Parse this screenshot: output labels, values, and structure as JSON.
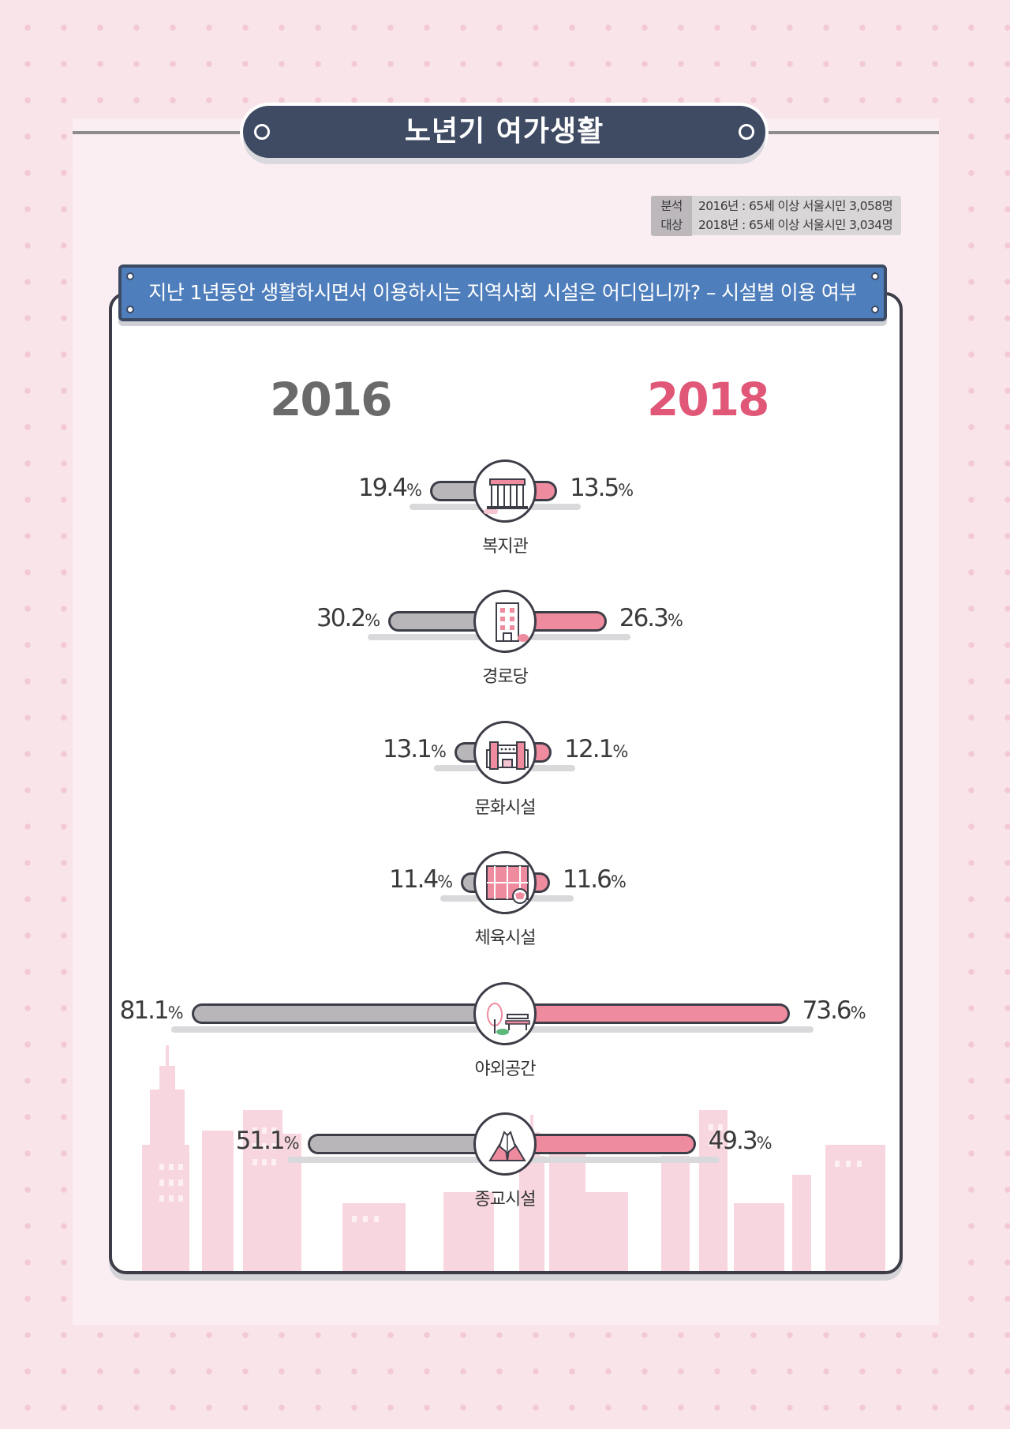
{
  "header": {
    "title": "노년기 여가생활"
  },
  "meta": {
    "label": "분석\n대상",
    "lines": [
      "2016년 : 65세 이상 서울시민 3,058명",
      "2018년 : 65세 이상 서울시민 3,034명"
    ]
  },
  "question": "지난 1년동안 생활하시면서 이용하시는 지역사회 시설은 어디입니까? – 시설별 이용 여부",
  "colors": {
    "y2016": "#b8b6b8",
    "y2018": "#ee8b9f",
    "title_bg": "#3f4a63",
    "question_bg": "#4f7ebc"
  },
  "chart_data": {
    "type": "bar",
    "orientation": "diverging-horizontal",
    "unit": "%",
    "categories": [
      "복지관",
      "경로당",
      "문화시설",
      "체육시설",
      "야외공간",
      "종교시설"
    ],
    "icons": [
      "welfare-center-icon",
      "senior-center-icon",
      "culture-facility-icon",
      "sports-facility-icon",
      "park-icon",
      "religion-icon"
    ],
    "series": [
      {
        "name": "2016",
        "side": "left",
        "color": "#b8b6b8",
        "values": [
          19.4,
          30.2,
          13.1,
          11.4,
          81.1,
          51.1
        ]
      },
      {
        "name": "2018",
        "side": "right",
        "color": "#ee8b9f",
        "values": [
          13.5,
          26.3,
          12.1,
          11.6,
          73.6,
          49.3
        ]
      }
    ],
    "value_labels": {
      "2016": [
        "19.4",
        "30.2",
        "13.1",
        "11.4",
        "81.1",
        "51.1"
      ],
      "2018": [
        "13.5",
        "26.3",
        "12.1",
        "11.6",
        "73.6",
        "49.3"
      ]
    }
  }
}
